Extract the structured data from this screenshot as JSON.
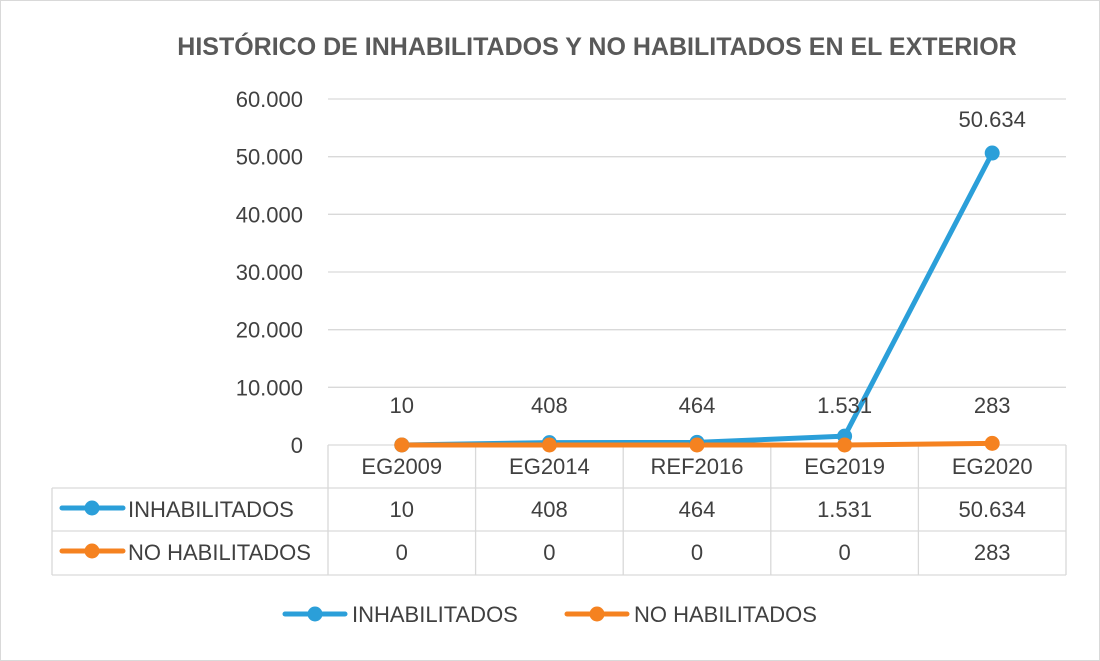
{
  "chart_data": {
    "type": "line",
    "title": "HISTÓRICO DE INHABILITADOS Y NO HABILITADOS EN EL EXTERIOR",
    "categories": [
      "EG2009",
      "EG2014",
      "REF2016",
      "EG2019",
      "EG2020"
    ],
    "series": [
      {
        "name": "INHABILITADOS",
        "values": [
          10,
          408,
          464,
          1531,
          50634
        ],
        "display": [
          "10",
          "408",
          "464",
          "1.531",
          "50.634"
        ],
        "color": "#2b9fd9",
        "show_data_labels": true
      },
      {
        "name": "NO HABILITADOS",
        "values": [
          0,
          0,
          0,
          0,
          283
        ],
        "display": [
          "0",
          "0",
          "0",
          "0",
          "283"
        ],
        "color": "#f58220",
        "show_data_labels": false
      }
    ],
    "ylim": [
      0,
      60000
    ],
    "yticks": [
      0,
      10000,
      20000,
      30000,
      40000,
      50000,
      60000
    ],
    "ytick_labels": [
      "0",
      "10.000",
      "20.000",
      "30.000",
      "40.000",
      "50.000",
      "60.000"
    ],
    "grid": true,
    "data_table": true,
    "legend_position": "bottom",
    "colors": {
      "grid": "#d9d9d9",
      "text": "#404040",
      "title": "#595959"
    }
  }
}
